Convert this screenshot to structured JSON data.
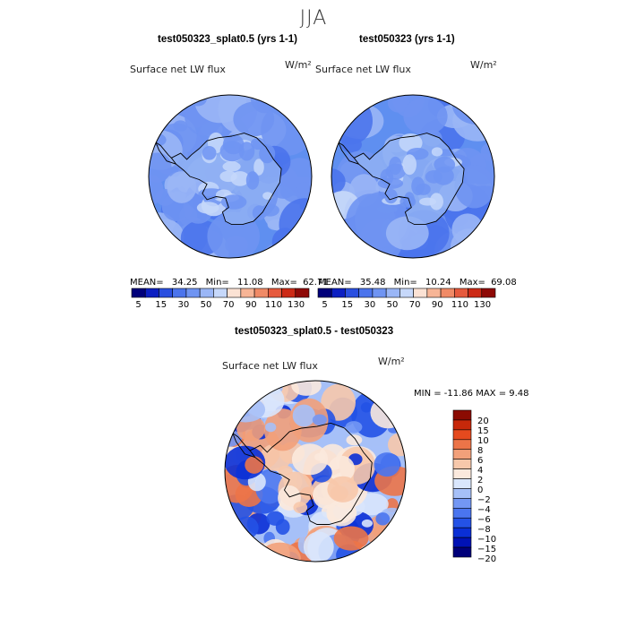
{
  "title": "JJA",
  "colors": {
    "abs_scale": [
      "#00007a",
      "#0c1fc2",
      "#2a4fe0",
      "#4b74ec",
      "#6f94f2",
      "#9ab6f6",
      "#c6d8fa",
      "#fbe2d4",
      "#f7b596",
      "#f08a66",
      "#e65a3d",
      "#cc2a16",
      "#8e0906"
    ],
    "diff_scale": [
      "#00007a",
      "#0012b5",
      "#0a2fd6",
      "#2452e6",
      "#4a75ef",
      "#7397f4",
      "#a6c0f8",
      "#d9e6fc",
      "#fbe9dd",
      "#f7c8ab",
      "#f2a07a",
      "#ec7448",
      "#e54a1e",
      "#c7280a",
      "#8b0b02"
    ],
    "land_abs": "#8fb0f3",
    "ocean_abs": "#5f8ff0"
  },
  "chart_data": [
    {
      "type": "heatmap",
      "projection": "south-polar-stereographic",
      "title": "test050323_splat0.5 (yrs 1-1)",
      "variable": "Surface net LW flux",
      "units": "W/m²",
      "stats": {
        "mean": "34.25",
        "min": "11.08",
        "max": "62.71"
      },
      "stat_labels": {
        "mean": "MEAN=",
        "min": "Min=",
        "max": "Max="
      },
      "colorbar_levels": [
        5,
        10,
        15,
        20,
        30,
        40,
        50,
        60,
        70,
        80,
        90,
        100,
        110,
        120,
        130
      ],
      "colorbar_tick_labels": [
        "5",
        "15",
        "30",
        "50",
        "70",
        "90",
        "110",
        "130"
      ]
    },
    {
      "type": "heatmap",
      "projection": "south-polar-stereographic",
      "title": "test050323 (yrs 1-1)",
      "variable": "Surface net LW flux",
      "units": "W/m²",
      "stats": {
        "mean": "35.48",
        "min": "10.24",
        "max": "69.08"
      },
      "stat_labels": {
        "mean": "MEAN=",
        "min": "Min=",
        "max": "Max="
      },
      "colorbar_levels": [
        5,
        10,
        15,
        20,
        30,
        40,
        50,
        60,
        70,
        80,
        90,
        100,
        110,
        120,
        130
      ],
      "colorbar_tick_labels": [
        "5",
        "15",
        "30",
        "50",
        "70",
        "90",
        "110",
        "130"
      ]
    },
    {
      "type": "heatmap",
      "projection": "south-polar-stereographic",
      "title": "test050323_splat0.5 - test050323",
      "variable": "Surface net LW flux",
      "units": "W/m²",
      "stats_text": "MIN = -11.86 MAX =   9.48",
      "stats": {
        "min": "-11.86",
        "max": "9.48"
      },
      "colorbar_levels": [
        -20,
        -15,
        -10,
        -8,
        -6,
        -4,
        -2,
        0,
        2,
        4,
        6,
        8,
        10,
        15,
        20
      ],
      "colorbar_tick_labels": [
        "20",
        "15",
        "10",
        "8",
        "6",
        "4",
        "2",
        "0",
        "−2",
        "−4",
        "−6",
        "−8",
        "−10",
        "−15",
        "−20"
      ]
    }
  ]
}
